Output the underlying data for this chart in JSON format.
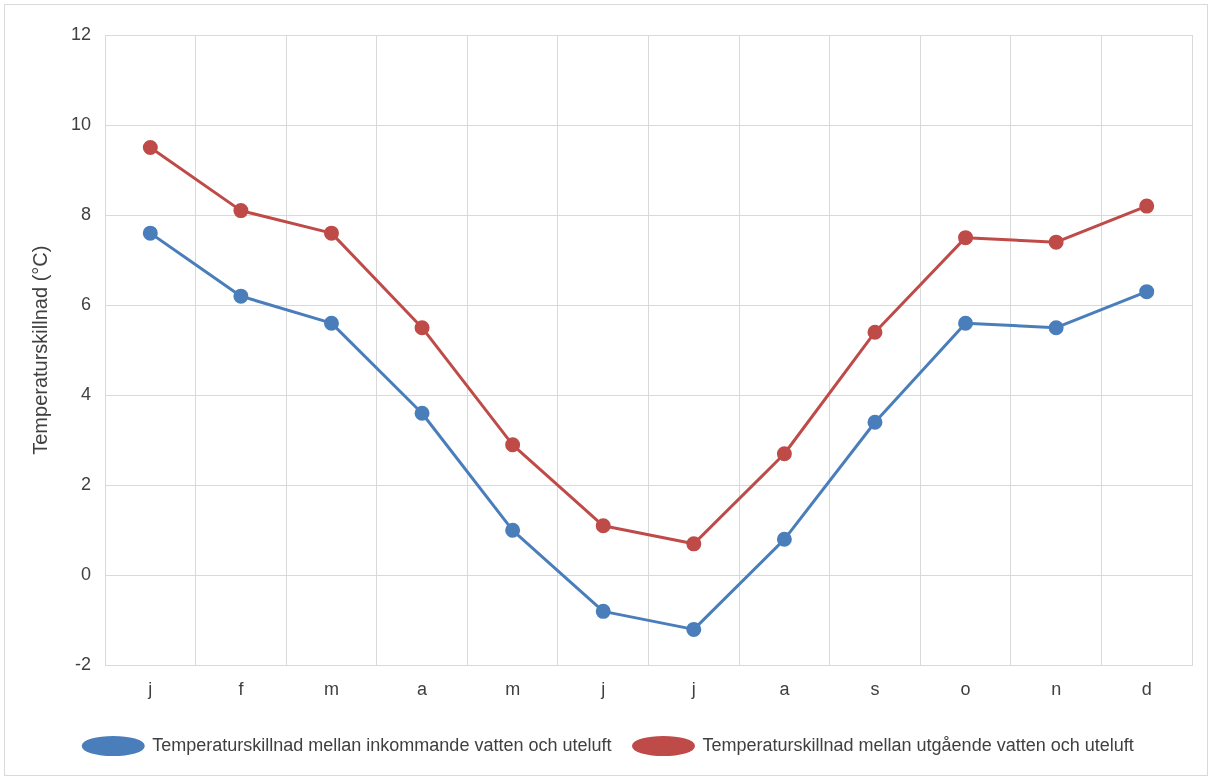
{
  "chart_data": {
    "type": "line",
    "ylabel": "Temperaturskillnad (°C)",
    "categories": [
      "j",
      "f",
      "m",
      "a",
      "m",
      "j",
      "j",
      "a",
      "s",
      "o",
      "n",
      "d"
    ],
    "series": [
      {
        "name": "Temperaturskillnad mellan inkommande vatten och uteluft",
        "color": "#4a7ebb",
        "values": [
          7.6,
          6.2,
          5.6,
          3.6,
          1.0,
          -0.8,
          -1.2,
          0.8,
          3.4,
          5.6,
          5.5,
          6.3
        ]
      },
      {
        "name": "Temperaturskillnad mellan utgående vatten och uteluft",
        "color": "#be4b48",
        "values": [
          9.5,
          8.1,
          7.6,
          5.5,
          2.9,
          1.1,
          0.7,
          2.7,
          5.4,
          7.5,
          7.4,
          8.2
        ]
      }
    ],
    "ylim": [
      -2,
      12
    ],
    "yticks": [
      -2,
      0,
      2,
      4,
      6,
      8,
      10,
      12
    ],
    "grid": true,
    "legend": "bottom",
    "marker": "circle",
    "line_style": "solid"
  }
}
